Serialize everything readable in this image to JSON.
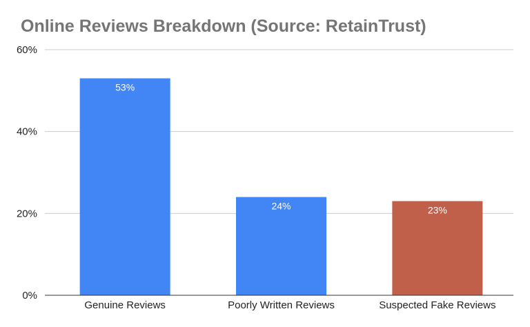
{
  "chart_data": {
    "type": "bar",
    "title": "Online Reviews Breakdown (Source: RetainTrust)",
    "categories": [
      "Genuine Reviews",
      "Poorly Written Reviews",
      "Suspected Fake Reviews"
    ],
    "values": [
      53,
      24,
      23
    ],
    "data_labels": [
      "53%",
      "24%",
      "23%"
    ],
    "bar_colors": [
      "#4285f4",
      "#4285f4",
      "#c1604a"
    ],
    "xlabel": "",
    "ylabel": "",
    "ylim": [
      0,
      60
    ],
    "y_ticks": [
      0,
      20,
      40,
      60
    ],
    "y_tick_labels": [
      "0%",
      "20%",
      "40%",
      "60%"
    ],
    "grid": true,
    "legend": "none"
  }
}
